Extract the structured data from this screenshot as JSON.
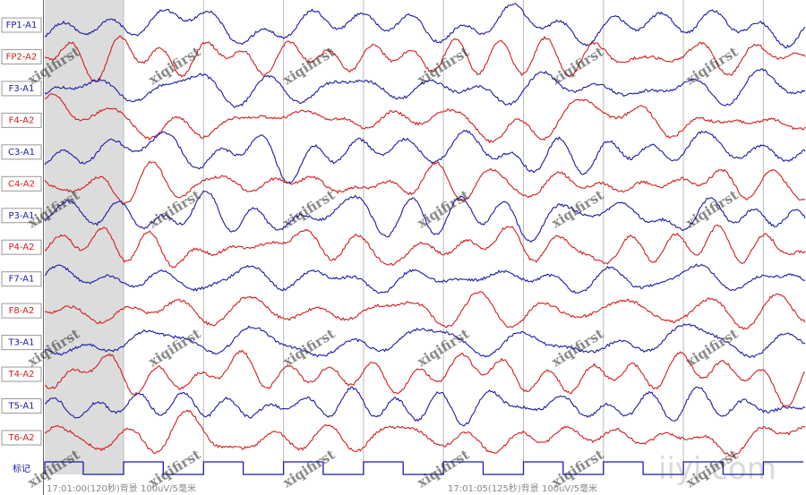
{
  "channels": [
    {
      "label": "FP1-A1",
      "color": "#1c1ca8"
    },
    {
      "label": "FP2-A2",
      "color": "#d41e1e"
    },
    {
      "label": "F3-A1",
      "color": "#1c1ca8"
    },
    {
      "label": "F4-A2",
      "color": "#d41e1e"
    },
    {
      "label": "C3-A1",
      "color": "#1c1ca8"
    },
    {
      "label": "C4-A2",
      "color": "#d41e1e"
    },
    {
      "label": "P3-A1",
      "color": "#1c1ca8"
    },
    {
      "label": "P4-A2",
      "color": "#d41e1e"
    },
    {
      "label": "F7-A1",
      "color": "#1c1ca8"
    },
    {
      "label": "F8-A2",
      "color": "#d41e1e"
    },
    {
      "label": "T3-A1",
      "color": "#1c1ca8"
    },
    {
      "label": "T4-A2",
      "color": "#d41e1e"
    },
    {
      "label": "T5-A1",
      "color": "#1c1ca8"
    },
    {
      "label": "T6-A2",
      "color": "#d41e1e"
    }
  ],
  "marker_label": "标记",
  "footer": [
    "17:01:00(120秒)背景 100uV/5毫米",
    "17:01:05(125秒)背景 100uV/5毫米"
  ],
  "watermark": "xiqifirst",
  "site_watermark": "iiyi.com"
}
